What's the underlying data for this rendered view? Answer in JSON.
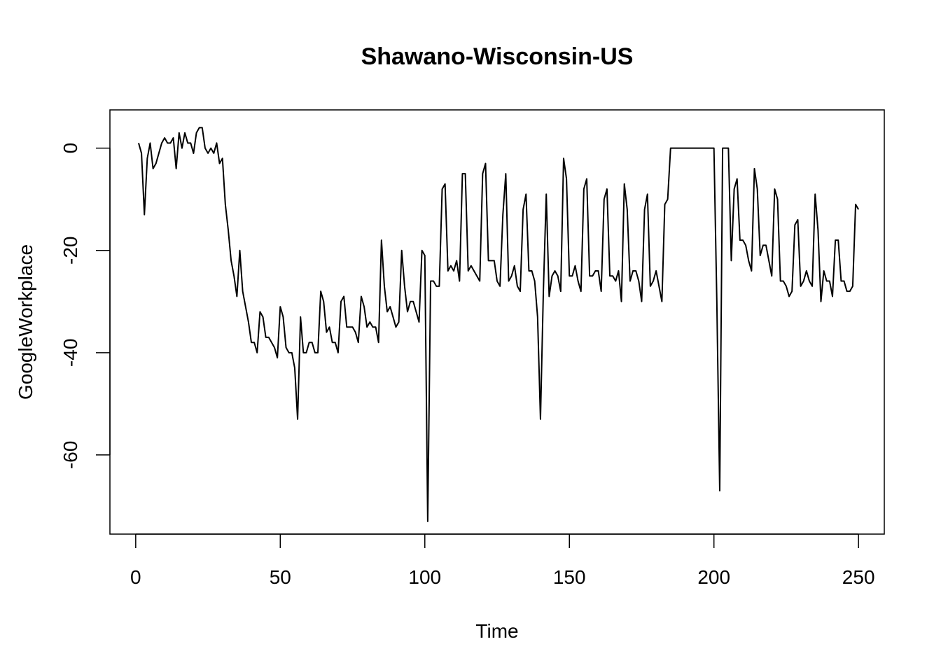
{
  "chart_data": {
    "type": "line",
    "title": "Shawano-Wisconsin-US",
    "xlabel": "Time",
    "ylabel": "GoogleWorkplace",
    "xlim": [
      -8.92,
      258.92
    ],
    "ylim": [
      -75.48,
      7.48
    ],
    "x_ticks": [
      0,
      50,
      100,
      150,
      200,
      250
    ],
    "x_tick_labels": [
      "0",
      "50",
      "100",
      "150",
      "200",
      "250"
    ],
    "y_ticks": [
      0,
      -20,
      -40,
      -60
    ],
    "y_tick_labels": [
      "0",
      "-20",
      "-40",
      "-60"
    ],
    "grid": false,
    "line_color": "#000000",
    "series": [
      {
        "name": "GoogleWorkplace",
        "x_start": 1,
        "values": [
          1,
          -1,
          -13,
          -2,
          1,
          -4,
          -3,
          -1,
          1,
          2,
          1,
          1,
          2,
          -4,
          3,
          0,
          3,
          1,
          1,
          -1,
          3,
          4,
          4,
          0,
          -1,
          0,
          -1,
          1,
          -3,
          -2,
          -11,
          -16,
          -22,
          -25,
          -29,
          -20,
          -28,
          -31,
          -34,
          -38,
          -38,
          -40,
          -32,
          -33,
          -37,
          -37,
          -38,
          -39,
          -41,
          -31,
          -33,
          -39,
          -40,
          -40,
          -43,
          -53,
          -33,
          -40,
          -40,
          -38,
          -38,
          -40,
          -40,
          -28,
          -30,
          -36,
          -35,
          -38,
          -38,
          -40,
          -30,
          -29,
          -35,
          -35,
          -35,
          -36,
          -38,
          -29,
          -31,
          -35,
          -34,
          -35,
          -35,
          -38,
          -18,
          -27,
          -32,
          -31,
          -33,
          -35,
          -34,
          -20,
          -27,
          -32,
          -30,
          -30,
          -32,
          -34,
          -20,
          -21,
          -73,
          -26,
          -26,
          -27,
          -27,
          -8,
          -7,
          -24,
          -23,
          -24,
          -22,
          -26,
          -5,
          -5,
          -24,
          -23,
          -24,
          -25,
          -26,
          -5,
          -3,
          -22,
          -22,
          -22,
          -26,
          -27,
          -13,
          -5,
          -26,
          -25,
          -23,
          -27,
          -28,
          -12,
          -9,
          -24,
          -24,
          -26,
          -33,
          -53,
          -28,
          -9,
          -29,
          -25,
          -24,
          -25,
          -28,
          -2,
          -6,
          -25,
          -25,
          -23,
          -26,
          -28,
          -8,
          -6,
          -25,
          -25,
          -24,
          -24,
          -28,
          -10,
          -8,
          -25,
          -25,
          -26,
          -24,
          -30,
          -7,
          -12,
          -26,
          -24,
          -24,
          -26,
          -30,
          -12,
          -9,
          -27,
          -26,
          -24,
          -27,
          -30,
          -11,
          -10,
          0,
          0,
          0,
          0,
          0,
          0,
          0,
          0,
          0,
          0,
          0,
          0,
          0,
          0,
          0,
          0,
          -30,
          -67,
          0,
          0,
          0,
          -22,
          -8,
          -6,
          -18,
          -18,
          -19,
          -22,
          -24,
          -4,
          -8,
          -21,
          -19,
          -19,
          -22,
          -25,
          -8,
          -10,
          -26,
          -26,
          -27,
          -29,
          -28,
          -15,
          -14,
          -27,
          -26,
          -24,
          -26,
          -27,
          -9,
          -16,
          -30,
          -24,
          -26,
          -26,
          -29,
          -18,
          -18,
          -26,
          -26,
          -28,
          -28,
          -27,
          -11,
          -12
        ]
      }
    ]
  }
}
